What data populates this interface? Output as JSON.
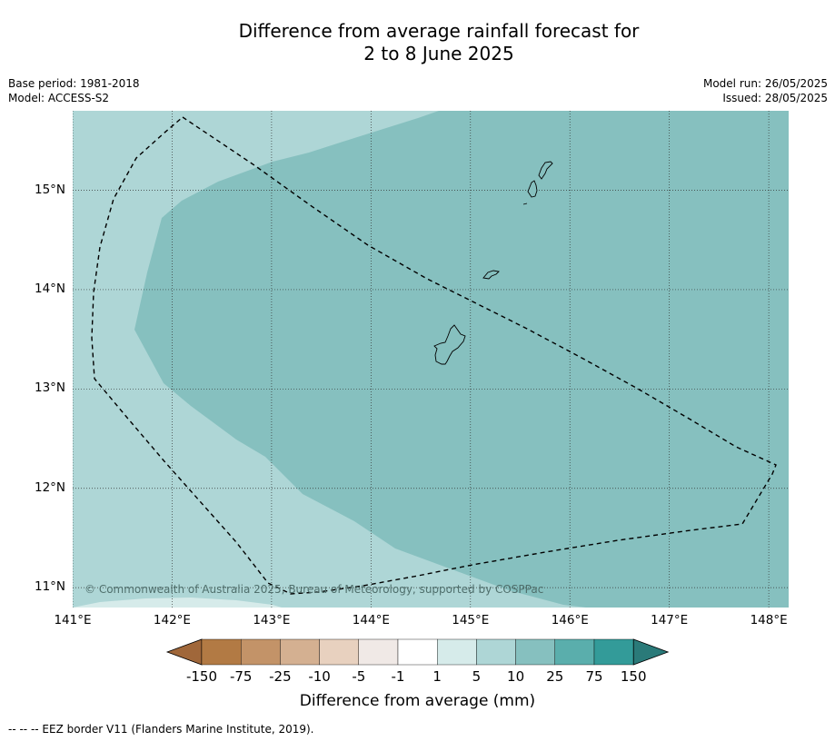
{
  "title": {
    "line1": "Difference from average rainfall forecast for",
    "line2": "2 to 8 June 2025"
  },
  "meta": {
    "base_period": "Base period: 1981-2018",
    "model": "Model: ACCESS-S2",
    "model_run": "Model run: 26/05/2025",
    "issued": "Issued: 28/05/2025"
  },
  "map": {
    "lon_range": [
      141.0,
      148.2
    ],
    "lat_range": [
      10.8,
      15.8
    ],
    "lat_ticks": [
      {
        "value": 15,
        "label": "15°N"
      },
      {
        "value": 14,
        "label": "14°N"
      },
      {
        "value": 13,
        "label": "13°N"
      },
      {
        "value": 12,
        "label": "12°N"
      },
      {
        "value": 11,
        "label": "11°N"
      }
    ],
    "lon_ticks": [
      {
        "value": 141,
        "label": "141°E"
      },
      {
        "value": 142,
        "label": "142°E"
      },
      {
        "value": 143,
        "label": "143°E"
      },
      {
        "value": 144,
        "label": "144°E"
      },
      {
        "value": 145,
        "label": "145°E"
      },
      {
        "value": 146,
        "label": "146°E"
      },
      {
        "value": 147,
        "label": "147°E"
      },
      {
        "value": 148,
        "label": "148°E"
      }
    ],
    "colors": {
      "band_5_10": "#aed6d6",
      "band_10_25": "#86c0bf",
      "band_1_5": "#d6ebea",
      "islands": "#86c0bf",
      "coast": "#000000"
    },
    "copyright": "© Commonwealth of Australia 2025, Bureau of Meteorology, supported by COSPPac"
  },
  "colorbar": {
    "title": "Difference from average (mm)",
    "labels": [
      "-150",
      "-75",
      "-25",
      "-10",
      "-5",
      "-1",
      "1",
      "5",
      "10",
      "25",
      "75",
      "150"
    ],
    "colors": [
      "#a0673a",
      "#b27a44",
      "#c39368",
      "#d4b091",
      "#e8d1bf",
      "#f0e9e6",
      "#ffffff",
      "#d6ebea",
      "#aed6d6",
      "#86c0bf",
      "#5aaeac",
      "#339b99",
      "#2a7a79"
    ]
  },
  "footer": "--  --  -- EEZ border V11 (Flanders Marine Institute, 2019)."
}
